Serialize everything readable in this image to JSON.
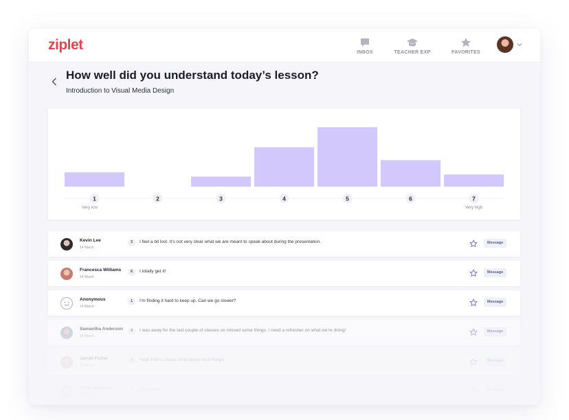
{
  "header": {
    "logo": "ziplet",
    "nav": [
      {
        "label": "INBOX",
        "icon": "chat-bubble-icon"
      },
      {
        "label": "TEACHER EXP",
        "icon": "graduation-cap-icon"
      },
      {
        "label": "FAVORITES",
        "icon": "star-icon"
      }
    ],
    "profile_icon": "chevron-down-icon"
  },
  "page": {
    "title": "How well did you understand today’s lesson?",
    "subtitle": "Introduction to Visual Media Design"
  },
  "chart_data": {
    "type": "bar",
    "categories": [
      "1",
      "2",
      "3",
      "4",
      "5",
      "6",
      "7"
    ],
    "values": [
      2,
      0,
      1.4,
      5.5,
      8.3,
      3.7,
      1.7
    ],
    "ylim": [
      0,
      9
    ],
    "title": "",
    "xlabel": "",
    "ylabel": "",
    "scale_labels": {
      "low": "Very low",
      "high": "Very high"
    },
    "bar_color": "#d3c8fb",
    "grid": false
  },
  "responses": [
    {
      "name": "Kevin Lee",
      "date": "14 March",
      "score": "3",
      "text": "I feel a bit lost. It’s not very clear what we are meant to speak about during the presentation.",
      "action": "Message",
      "avatar_color": "#2b2b33"
    },
    {
      "name": "Francesca Williams",
      "date": "14 March",
      "score": "6",
      "text": "I totally get it!",
      "action": "Message",
      "avatar_color": "#c97a6d"
    },
    {
      "name": "Anonymous",
      "date": "14 March",
      "score": "1",
      "text": "I’m finding it hard to keep up. Can we go slower?",
      "action": "Message",
      "avatar_color": "#ffffff"
    },
    {
      "name": "Samantha Anderson",
      "date": "14 March",
      "score": "4",
      "text": "I was away for the last couple of classes so missed some things. I need a refresher on what we’re doing!",
      "action": "Message",
      "avatar_color": "#9fb7c9"
    },
    {
      "name": "Jarrah Fisher",
      "date": "14 March",
      "score": "5",
      "text": "Yeah I think I have understood most things",
      "action": "Message",
      "avatar_color": "#c9a8a2"
    },
    {
      "name": "Fiona Mckenzie",
      "date": "14 March",
      "score": "6",
      "text": "Got it now",
      "action": "Message",
      "avatar_color": "#b9b9c4"
    }
  ]
}
